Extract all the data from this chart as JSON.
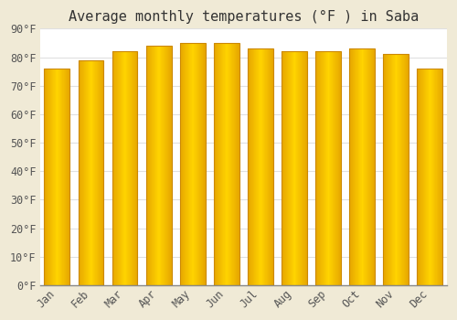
{
  "title": "Average monthly temperatures (°F ) in Saba",
  "months": [
    "Jan",
    "Feb",
    "Mar",
    "Apr",
    "May",
    "Jun",
    "Jul",
    "Aug",
    "Sep",
    "Oct",
    "Nov",
    "Dec"
  ],
  "values": [
    76,
    79,
    82,
    84,
    85,
    85,
    83,
    82,
    82,
    83,
    81,
    76
  ],
  "bar_color_light": "#FFD966",
  "bar_color_dark": "#FFA500",
  "bar_edge_color": "#CC8800",
  "background_color": "#FFFFFF",
  "fig_background_color": "#F0EAD6",
  "ylim": [
    0,
    90
  ],
  "ytick_step": 10,
  "grid_color": "#E0E0E0",
  "title_fontsize": 11,
  "tick_fontsize": 8.5,
  "font_family": "monospace",
  "bar_width": 0.75
}
